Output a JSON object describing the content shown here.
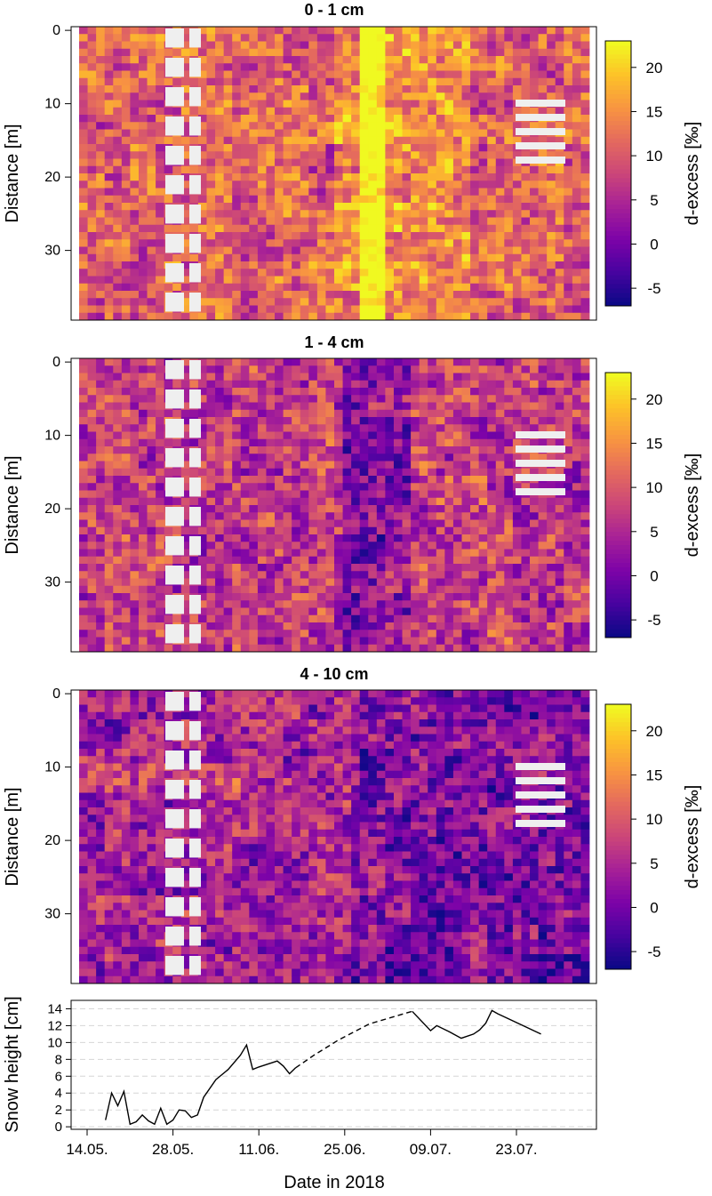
{
  "chart_data": [
    {
      "type": "heatmap",
      "title": "0 - 1 cm",
      "ylabel": "Distance [m]",
      "yticks": [
        0,
        10,
        20,
        30
      ],
      "ylim": [
        -0.5,
        39.5
      ],
      "colorbar": {
        "label": "d-excess [‰]",
        "ticks": [
          -5,
          0,
          5,
          10,
          15,
          20
        ],
        "range": [
          -7,
          23
        ]
      },
      "layer_offset": 4
    },
    {
      "type": "heatmap",
      "title": "1 - 4 cm",
      "ylabel": "Distance [m]",
      "yticks": [
        0,
        10,
        20,
        30
      ],
      "ylim": [
        -0.5,
        39.5
      ],
      "colorbar": {
        "label": "d-excess [‰]",
        "ticks": [
          -5,
          0,
          5,
          10,
          15,
          20
        ],
        "range": [
          -7,
          23
        ]
      },
      "layer_offset": 0
    },
    {
      "type": "heatmap",
      "title": "4 - 10 cm",
      "ylabel": "Distance [m]",
      "yticks": [
        0,
        10,
        20,
        30
      ],
      "ylim": [
        -0.5,
        39.5
      ],
      "colorbar": {
        "label": "d-excess [‰]",
        "ticks": [
          -5,
          0,
          5,
          10,
          15,
          20
        ],
        "range": [
          -7,
          23
        ]
      },
      "layer_offset": -3
    },
    {
      "type": "line",
      "ylabel": "Snow height [cm]",
      "xlabel": "Date in 2018",
      "xticks": [
        "14.05.",
        "28.05.",
        "11.06.",
        "25.06.",
        "09.07.",
        "23.07."
      ],
      "yticks": [
        0,
        2,
        4,
        6,
        8,
        10,
        12,
        14
      ],
      "ylim": [
        -0.3,
        15
      ],
      "grid": "horizontal dashed",
      "series": [
        {
          "style": "solid",
          "x": [
            17,
            18,
            19,
            20,
            21,
            22,
            23,
            24,
            25,
            26,
            27,
            28,
            29,
            30,
            31,
            32,
            33,
            35,
            37,
            39,
            40,
            41,
            42,
            45,
            46,
            47,
            48
          ],
          "y": [
            0.8,
            4.0,
            2.5,
            4.2,
            0.3,
            0.6,
            1.4,
            0.7,
            0.3,
            2.2,
            0.3,
            0.8,
            2.0,
            1.9,
            1.1,
            1.4,
            3.5,
            5.6,
            6.8,
            8.5,
            9.7,
            6.8,
            7.1,
            7.8,
            7.2,
            6.3,
            7.0
          ]
        },
        {
          "style": "dashed",
          "x": [
            48,
            51,
            55,
            60,
            67
          ],
          "y": [
            7.0,
            8.5,
            10.3,
            12.2,
            13.7
          ]
        },
        {
          "style": "solid",
          "x": [
            67,
            70,
            71,
            73,
            75,
            77,
            78,
            79,
            80,
            81,
            88
          ],
          "y": [
            13.7,
            11.4,
            12.0,
            11.3,
            10.5,
            11.0,
            11.5,
            12.3,
            13.8,
            13.4,
            11.0
          ]
        }
      ]
    }
  ]
}
